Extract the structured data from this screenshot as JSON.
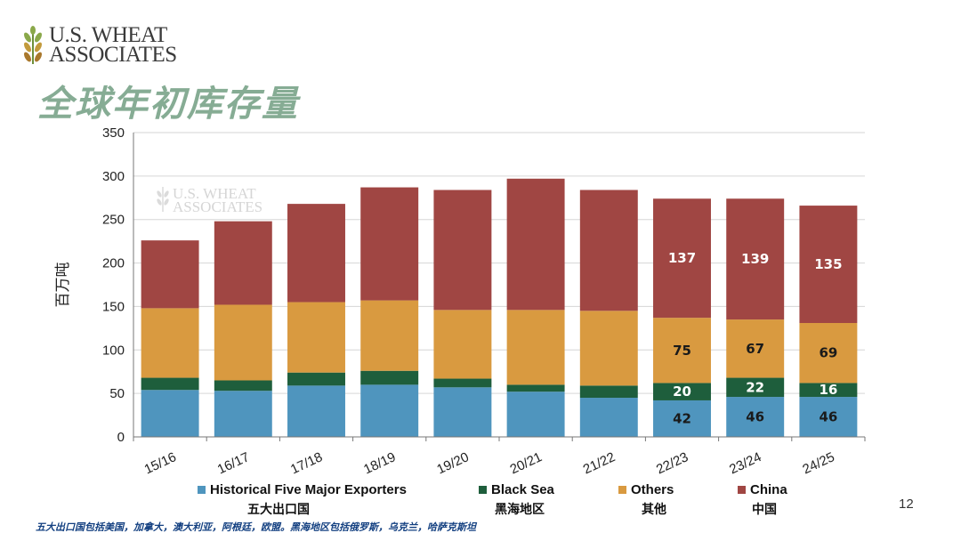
{
  "header": {
    "logo_line1": "U.S. WHEAT",
    "logo_line2": "ASSOCIATES",
    "title": "全球年初库存量"
  },
  "watermark": {
    "line1": "U.S. WHEAT",
    "line2": "ASSOCIATES"
  },
  "footnote": "五大出口国包括美国，加拿大，澳大利亚，阿根廷，欧盟。黑海地区包括俄罗斯，乌克兰，哈萨克斯坦",
  "page_number": "12",
  "chart_data": {
    "type": "bar",
    "stacked": true,
    "title": "全球年初库存量",
    "xlabel": "",
    "ylabel": "百万吨",
    "ylim": [
      0,
      350
    ],
    "yticks": [
      0,
      50,
      100,
      150,
      200,
      250,
      300,
      350
    ],
    "categories": [
      "15/16",
      "16/17",
      "17/18",
      "18/19",
      "19/20",
      "20/21",
      "21/22",
      "22/23",
      "23/24",
      "24/25"
    ],
    "series": [
      {
        "name": "Historical Five Major Exporters",
        "name_cn": "五大出口国",
        "color": "#4f95be",
        "values": [
          54,
          53,
          59,
          60,
          57,
          52,
          45,
          42,
          46,
          46
        ]
      },
      {
        "name": "Black Sea",
        "name_cn": "黑海地区",
        "color": "#1e5e3c",
        "values": [
          14,
          12,
          15,
          16,
          10,
          8,
          14,
          20,
          22,
          16
        ]
      },
      {
        "name": "Others",
        "name_cn": "其他",
        "color": "#d99a40",
        "values": [
          80,
          87,
          81,
          81,
          79,
          86,
          86,
          75,
          67,
          69
        ]
      },
      {
        "name": "China",
        "name_cn": "中国",
        "color": "#a04643",
        "values": [
          78,
          96,
          113,
          130,
          138,
          151,
          139,
          137,
          139,
          135
        ]
      }
    ],
    "data_labels": [
      {
        "series": 0,
        "points": [
          7,
          8,
          9
        ],
        "text": [
          "42",
          "46",
          "46"
        ],
        "color": "#1a1a1a"
      },
      {
        "series": 1,
        "points": [
          7,
          8,
          9
        ],
        "text": [
          "20",
          "22",
          "16"
        ],
        "color": "#ffffff"
      },
      {
        "series": 2,
        "points": [
          7,
          8,
          9
        ],
        "text": [
          "75",
          "67",
          "69"
        ],
        "color": "#1a1a1a"
      },
      {
        "series": 3,
        "points": [
          7,
          8,
          9
        ],
        "text": [
          "137",
          "139",
          "135"
        ],
        "color": "#ffffff"
      }
    ]
  }
}
